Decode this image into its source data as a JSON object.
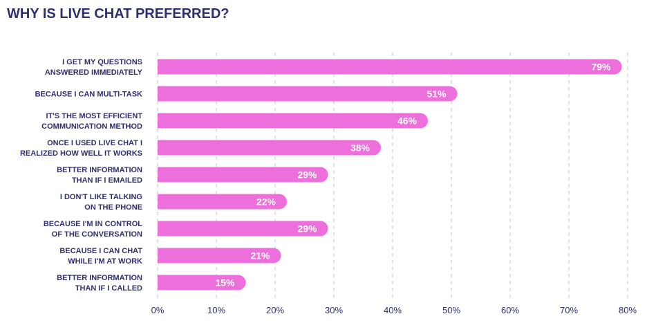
{
  "chart_data": {
    "type": "bar",
    "orientation": "horizontal",
    "title": "WHY IS LIVE CHAT PREFERRED?",
    "xlabel": "",
    "ylabel": "",
    "xlim": [
      0,
      80
    ],
    "grid": true,
    "categories": [
      [
        "I GET MY QUESTIONS",
        "ANSWERED IMMEDIATELY"
      ],
      [
        "BECAUSE I CAN MULTI-TASK"
      ],
      [
        "IT'S THE MOST EFFICIENT",
        "COMMUNICATION METHOD"
      ],
      [
        "ONCE I USED LIVE CHAT I",
        "REALIZED HOW WELL IT WORKS"
      ],
      [
        "BETTER INFORMATION",
        "THAN IF I EMAILED"
      ],
      [
        "I DON'T LIKE TALKING",
        "ON THE PHONE"
      ],
      [
        "BECAUSE I'M IN CONTROL",
        "OF THE CONVERSATION"
      ],
      [
        "BECAUSE I CAN CHAT",
        "WHILE I'M AT WORK"
      ],
      [
        "BETTER INFORMATION",
        "THAN IF I CALLED"
      ]
    ],
    "values": [
      79,
      51,
      46,
      38,
      29,
      22,
      29,
      21,
      15
    ],
    "data_labels": [
      "79%",
      "51%",
      "46%",
      "38%",
      "29%",
      "22%",
      "29%",
      "21%",
      "15%"
    ],
    "x_ticks": [
      0,
      10,
      20,
      30,
      40,
      50,
      60,
      70,
      80
    ],
    "x_tick_labels": [
      "0%",
      "10%",
      "20%",
      "30%",
      "40%",
      "50%",
      "60%",
      "70%",
      "80%"
    ],
    "colors": {
      "bar": "#ED6FDB",
      "title": "#2E2F6E",
      "label": "#2E2F6E",
      "grid": "#C5CCE6",
      "value_text": "#FFFFFF"
    }
  }
}
